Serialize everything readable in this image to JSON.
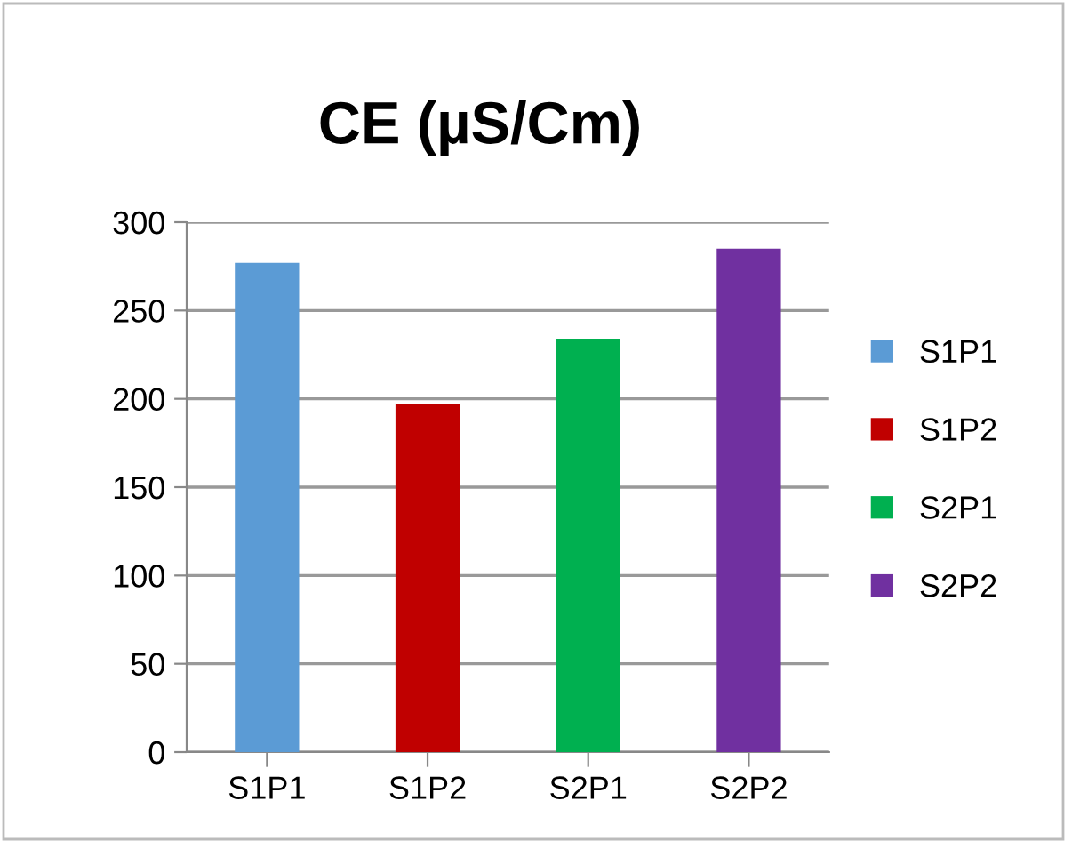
{
  "chart_data": {
    "type": "bar",
    "title": "CE (µS/Cm)",
    "categories": [
      "S1P1",
      "S1P2",
      "S2P1",
      "S2P2"
    ],
    "series": [
      {
        "name": "S1P1",
        "color": "#5b9bd5",
        "values": [
          277,
          null,
          null,
          null
        ]
      },
      {
        "name": "S1P2",
        "color": "#c00000",
        "values": [
          null,
          197,
          null,
          null
        ]
      },
      {
        "name": "S2P1",
        "color": "#00b050",
        "values": [
          null,
          null,
          234,
          null
        ]
      },
      {
        "name": "S2P2",
        "color": "#7030a0",
        "values": [
          null,
          null,
          null,
          285
        ]
      }
    ],
    "ylim": [
      0,
      300
    ],
    "yticks": [
      0,
      50,
      100,
      150,
      200,
      250,
      300
    ],
    "grid": "y",
    "legend": "right"
  }
}
